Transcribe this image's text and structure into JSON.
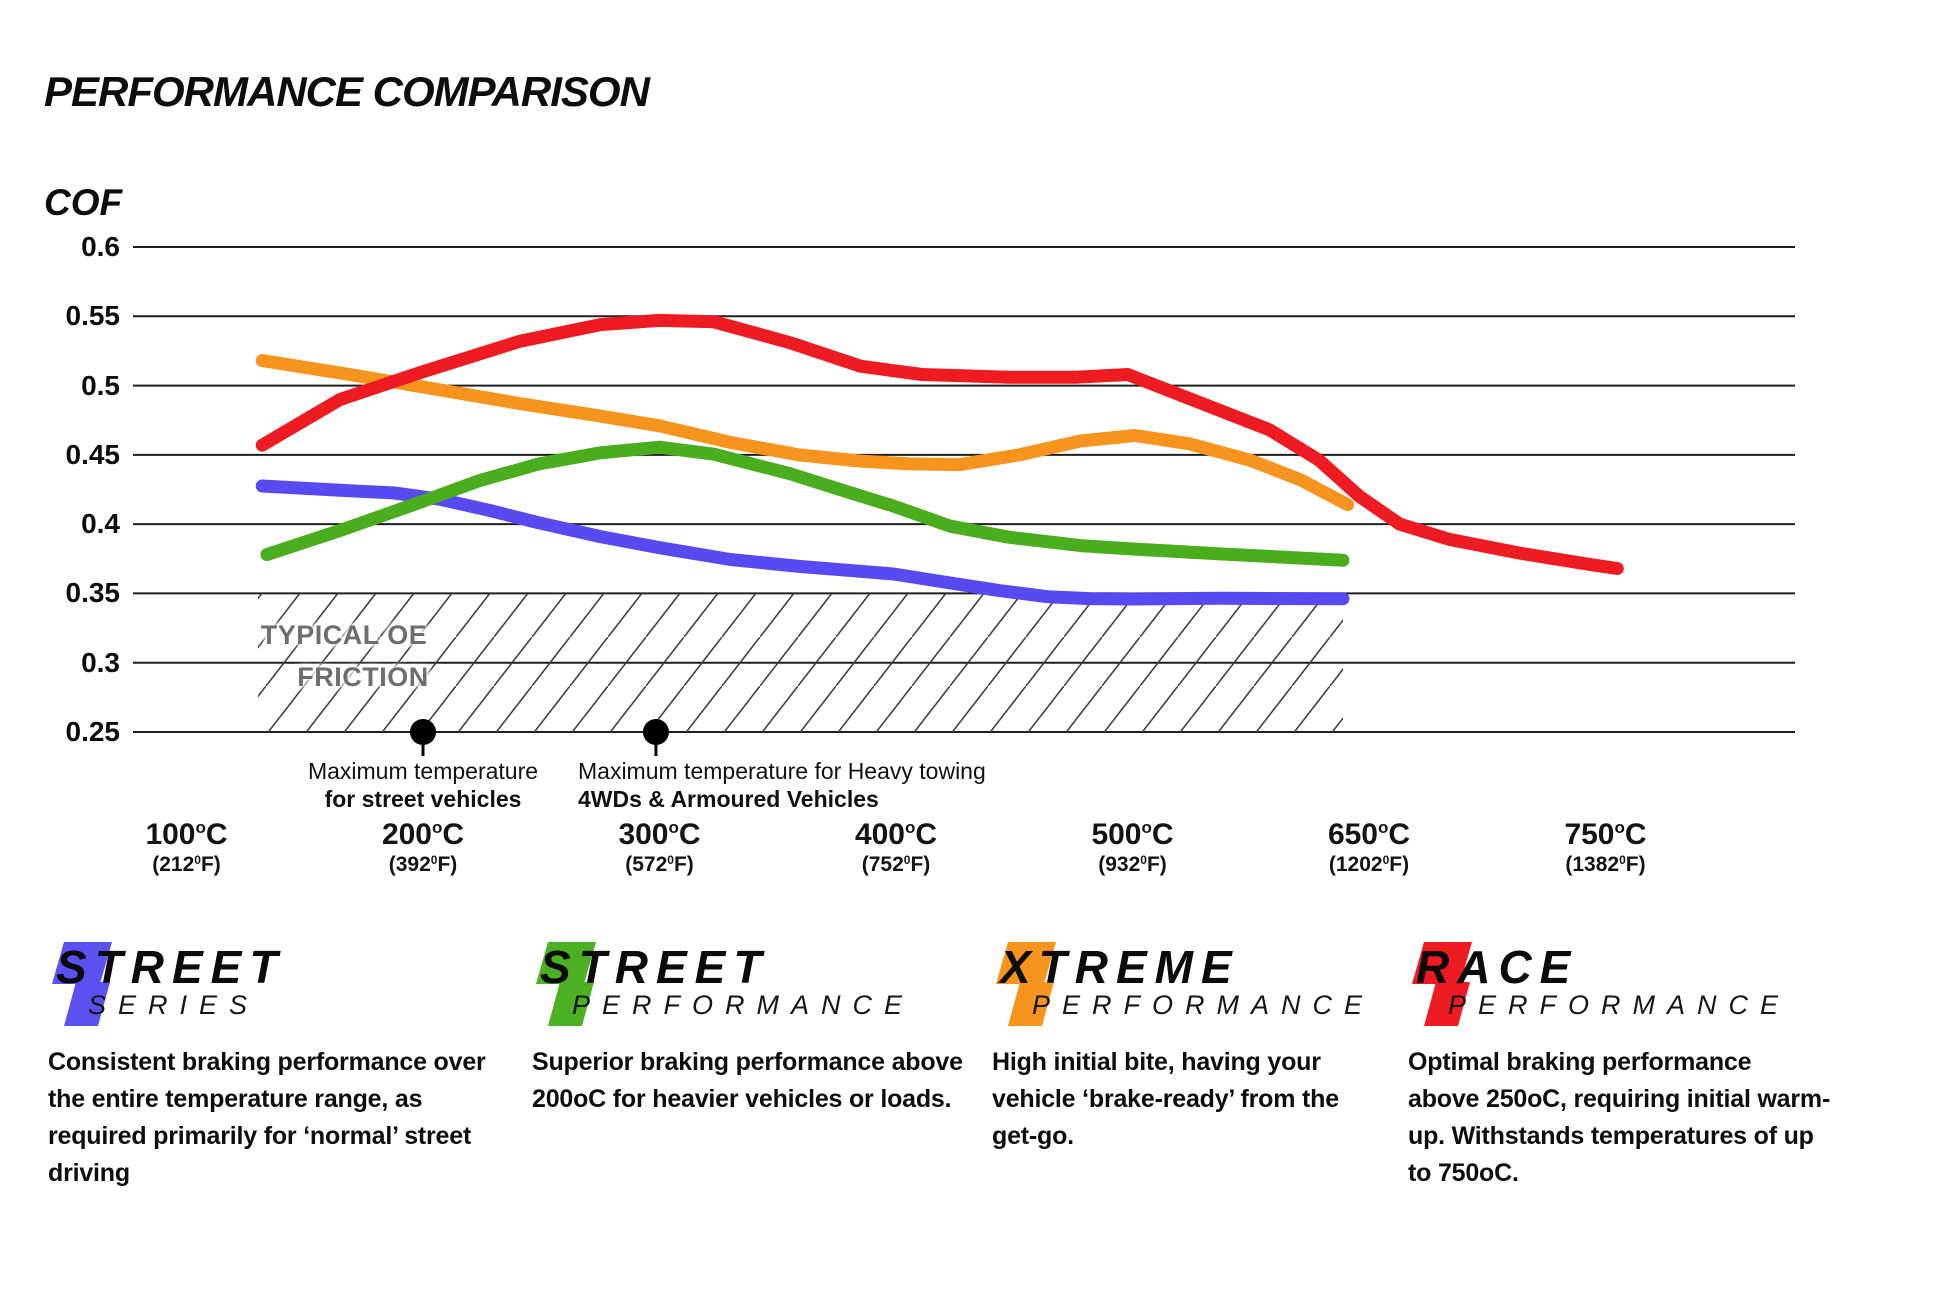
{
  "title": "PERFORMANCE COMPARISON",
  "y_axis_title": "COF",
  "oe_band_label": [
    "TYPICAL OE",
    "FRICTION"
  ],
  "annotations": [
    {
      "lines": [
        "Maximum temperature",
        "for street vehicles"
      ]
    },
    {
      "lines": [
        "Maximum temperature for Heavy towing",
        "4WDs & Armoured Vehicles"
      ]
    }
  ],
  "chart_data": {
    "type": "line",
    "title": "PERFORMANCE COMPARISON",
    "ylabel": "COF",
    "ylim": [
      0.25,
      0.62
    ],
    "grid": true,
    "legend_position": "bottom",
    "y_ticks": [
      "0.6",
      "0.55",
      "0.5",
      "0.45",
      "0.4",
      "0.35",
      "0.3",
      "0.25"
    ],
    "y_tick_values": [
      0.6,
      0.55,
      0.5,
      0.45,
      0.4,
      0.35,
      0.3,
      0.25
    ],
    "x_ticks": [
      {
        "celsius": "100",
        "fahrenheit": "212"
      },
      {
        "celsius": "200",
        "fahrenheit": "392"
      },
      {
        "celsius": "300",
        "fahrenheit": "572"
      },
      {
        "celsius": "400",
        "fahrenheit": "752"
      },
      {
        "celsius": "500",
        "fahrenheit": "932"
      },
      {
        "celsius": "650",
        "fahrenheit": "1202"
      },
      {
        "celsius": "750",
        "fahrenheit": "1382"
      }
    ],
    "sup_marks": {
      "celsius": "o",
      "celsius_unit": "C",
      "fahrenheit": "0",
      "fahrenheit_unit": "F",
      "paren_open": "(",
      "paren_close": ")"
    },
    "oe_band": {
      "x_from": 0.302,
      "x_to": 4.89,
      "y_from": 0.25,
      "y_to": 0.35
    },
    "annotation_dots": [
      {
        "x": 1.0
      },
      {
        "x": 1.985
      }
    ],
    "series": [
      {
        "name": "Street Series",
        "color": "#564af0",
        "points": [
          [
            0.32,
            0.4275
          ],
          [
            0.65,
            0.4245
          ],
          [
            0.88,
            0.4225
          ],
          [
            1.07,
            0.418
          ],
          [
            1.28,
            0.41
          ],
          [
            1.49,
            0.401
          ],
          [
            1.75,
            0.391
          ],
          [
            2.0,
            0.383
          ],
          [
            2.3,
            0.3745
          ],
          [
            2.59,
            0.3695
          ],
          [
            2.85,
            0.366
          ],
          [
            2.99,
            0.364
          ],
          [
            3.23,
            0.3575
          ],
          [
            3.44,
            0.352
          ],
          [
            3.65,
            0.3475
          ],
          [
            3.82,
            0.3463
          ],
          [
            4.01,
            0.346
          ],
          [
            4.37,
            0.3465
          ],
          [
            4.89,
            0.3462
          ]
        ]
      },
      {
        "name": "Street Performance",
        "color": "#4aad1e",
        "points": [
          [
            0.34,
            0.378
          ],
          [
            0.65,
            0.3955
          ],
          [
            1.0,
            0.4165
          ],
          [
            1.24,
            0.4315
          ],
          [
            1.49,
            0.4435
          ],
          [
            1.75,
            0.4515
          ],
          [
            2.0,
            0.4555
          ],
          [
            2.23,
            0.4505
          ],
          [
            2.55,
            0.4365
          ],
          [
            2.81,
            0.4225
          ],
          [
            2.99,
            0.413
          ],
          [
            3.23,
            0.3985
          ],
          [
            3.48,
            0.3905
          ],
          [
            3.78,
            0.3845
          ],
          [
            4.01,
            0.382
          ],
          [
            4.37,
            0.3785
          ],
          [
            4.89,
            0.374
          ]
        ]
      },
      {
        "name": "Xtreme Performance",
        "color": "#f7941e",
        "points": [
          [
            0.32,
            0.518
          ],
          [
            0.69,
            0.508
          ],
          [
            1.0,
            0.499
          ],
          [
            1.41,
            0.487
          ],
          [
            1.75,
            0.478
          ],
          [
            2.0,
            0.471
          ],
          [
            2.3,
            0.459
          ],
          [
            2.59,
            0.45
          ],
          [
            2.85,
            0.4455
          ],
          [
            3.06,
            0.4435
          ],
          [
            3.27,
            0.443
          ],
          [
            3.52,
            0.45
          ],
          [
            3.78,
            0.46
          ],
          [
            4.01,
            0.464
          ],
          [
            4.24,
            0.458
          ],
          [
            4.5,
            0.446
          ],
          [
            4.71,
            0.432
          ],
          [
            4.91,
            0.414
          ]
        ]
      },
      {
        "name": "Race Performance",
        "color": "#ee1b22",
        "points": [
          [
            0.32,
            0.457
          ],
          [
            0.65,
            0.49
          ],
          [
            1.0,
            0.51
          ],
          [
            1.41,
            0.532
          ],
          [
            1.75,
            0.544
          ],
          [
            2.0,
            0.547
          ],
          [
            2.23,
            0.546
          ],
          [
            2.55,
            0.531
          ],
          [
            2.85,
            0.514
          ],
          [
            3.11,
            0.508
          ],
          [
            3.48,
            0.506
          ],
          [
            3.76,
            0.506
          ],
          [
            3.98,
            0.508
          ],
          [
            4.28,
            0.488
          ],
          [
            4.58,
            0.468
          ],
          [
            4.79,
            0.446
          ],
          [
            4.96,
            0.42
          ],
          [
            5.13,
            0.4
          ],
          [
            5.34,
            0.389
          ],
          [
            5.64,
            0.379
          ],
          [
            5.93,
            0.371
          ],
          [
            6.05,
            0.368
          ]
        ]
      }
    ]
  },
  "legend": {
    "items": [
      {
        "id": "street-series",
        "main": "STREET",
        "sub": "SERIES",
        "color": "#5b50f0",
        "desc_lines": [
          "Consistent braking performance over",
          "the entire temperature range, as",
          "required primarily for ‘normal’ street",
          "driving"
        ]
      },
      {
        "id": "street-performance",
        "main": "STREET",
        "sub": "PERFORMANCE",
        "color": "#4cb122",
        "desc_lines": [
          "Superior braking performance above",
          "200oC for heavier vehicles or loads."
        ]
      },
      {
        "id": "xtreme-performance",
        "main": "XTREME",
        "sub": "PERFORMANCE",
        "color": "#f7941e",
        "desc_lines": [
          "High initial bite, having your",
          "vehicle ‘brake-ready’ from the",
          "get-go."
        ]
      },
      {
        "id": "race-performance",
        "main": "RACE",
        "sub": "PERFORMANCE",
        "color": "#ee1b22",
        "desc_lines": [
          "Optimal braking performance",
          "above 250oC, requiring initial warm-",
          "up. Withstands temperatures of up",
          "to 750oC."
        ]
      }
    ]
  }
}
